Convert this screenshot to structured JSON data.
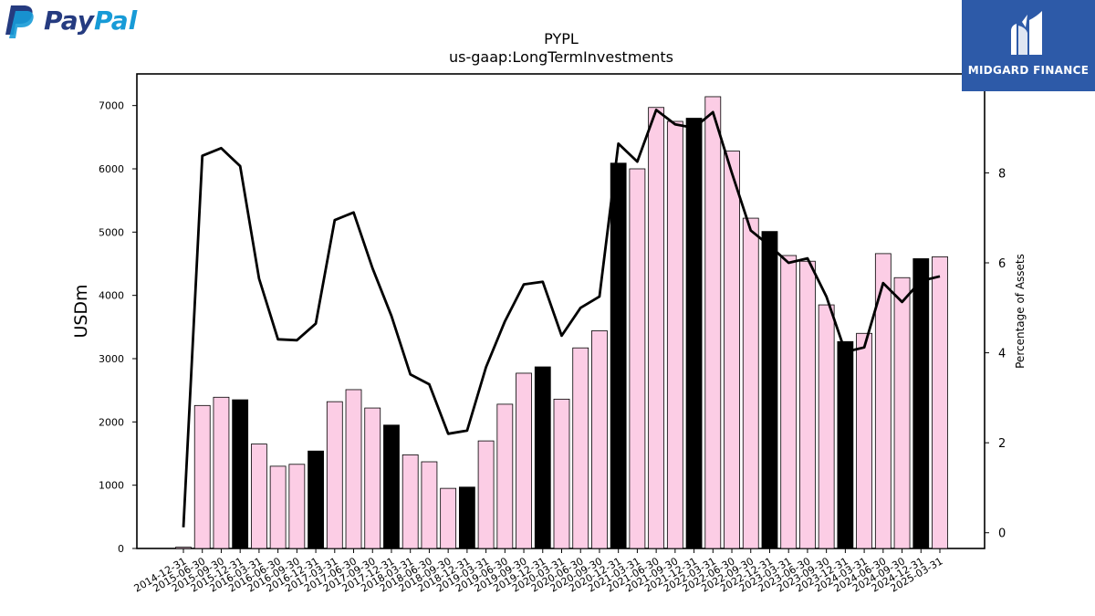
{
  "logos": {
    "paypal": {
      "text_pay": "Pay",
      "text_pal": "Pal",
      "color_dark": "#253b80",
      "color_light": "#179bd7"
    },
    "midgard": {
      "text": "MIDGARD FINANCE",
      "color": "#2d5aa8"
    }
  },
  "chart_data": {
    "type": "bar",
    "title": "PYPL",
    "subtitle": "us-gaap:LongTermInvestments",
    "ylabel": "USDm",
    "y2label": "Percentage of Assets",
    "ylim": [
      0,
      7500
    ],
    "y2lim": [
      -0.35,
      10.2
    ],
    "yticks": [
      0,
      1000,
      2000,
      3000,
      4000,
      5000,
      6000,
      7000
    ],
    "y2ticks": [
      0,
      2,
      4,
      6,
      8
    ],
    "grid": false,
    "bar_color": "#fccde5",
    "highlight_color": "#000000",
    "line_color": "#000000",
    "categories": [
      "2014-12-31",
      "2015-06-30",
      "2015-09-30",
      "2015-12-31",
      "2016-03-31",
      "2016-06-30",
      "2016-09-30",
      "2016-12-31",
      "2017-03-31",
      "2017-06-30",
      "2017-09-30",
      "2017-12-31",
      "2018-03-31",
      "2018-06-30",
      "2018-09-30",
      "2018-12-31",
      "2019-03-31",
      "2019-06-30",
      "2019-09-30",
      "2019-12-31",
      "2020-03-31",
      "2020-06-30",
      "2020-09-30",
      "2020-12-31",
      "2021-03-31",
      "2021-06-30",
      "2021-09-30",
      "2021-12-31",
      "2022-03-31",
      "2022-06-30",
      "2022-09-30",
      "2022-12-31",
      "2023-03-31",
      "2023-06-30",
      "2023-09-30",
      "2023-12-31",
      "2024-03-31",
      "2024-06-30",
      "2024-09-30",
      "2024-12-31",
      "2025-03-31"
    ],
    "highlight": [
      false,
      false,
      false,
      true,
      false,
      false,
      false,
      true,
      false,
      false,
      false,
      true,
      false,
      false,
      false,
      true,
      false,
      false,
      false,
      true,
      false,
      false,
      false,
      true,
      false,
      false,
      false,
      true,
      false,
      false,
      false,
      true,
      false,
      false,
      false,
      true,
      false,
      false,
      false,
      true,
      false
    ],
    "series": [
      {
        "type": "bar",
        "values": [
          20,
          2260,
          2390,
          2350,
          1650,
          1300,
          1330,
          1540,
          2320,
          2510,
          2220,
          1950,
          1480,
          1370,
          950,
          970,
          1700,
          2280,
          2770,
          2870,
          2360,
          3170,
          3440,
          6090,
          6000,
          6970,
          6750,
          6800,
          7140,
          6280,
          5220,
          5010,
          4630,
          4540,
          3850,
          3270,
          3400,
          4660,
          4280,
          4580,
          4610
        ]
      },
      {
        "type": "line",
        "axis": "right",
        "values": [
          0.12,
          8.38,
          8.55,
          8.15,
          5.65,
          4.3,
          4.28,
          4.65,
          6.95,
          7.12,
          5.88,
          4.82,
          3.52,
          3.3,
          2.2,
          2.27,
          3.68,
          4.7,
          5.52,
          5.58,
          4.38,
          5.0,
          5.25,
          8.65,
          8.25,
          9.4,
          9.08,
          9.0,
          9.35,
          8.0,
          6.72,
          6.38,
          6.0,
          6.1,
          5.25,
          4.02,
          4.12,
          5.55,
          5.13,
          5.6,
          5.7
        ]
      }
    ]
  }
}
